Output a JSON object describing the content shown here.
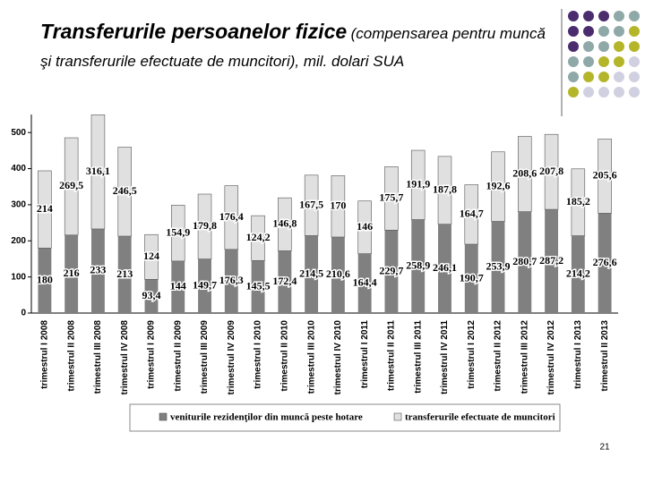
{
  "chart_data": {
    "type": "stacked_bar",
    "title": "Transferurile persoanelor fizice",
    "subtitle": "(compensarea pentru muncă şi transferurile efectuate de muncitori), mil. dolari SUA",
    "categories": [
      "trimestrul I 2008",
      "trimestrul II 2008",
      "trimestrul III 2008",
      "trimestrul IV 2008",
      "trimestrul I 2009",
      "trimestrul II 2009",
      "trimestrul III 2009",
      "trimestrul IV 2009",
      "trimestrul I 2010",
      "trimestrul II 2010",
      "trimestrul III 2010",
      "trimestrul IV 2010",
      "trimestrul I 2011",
      "trimestrul II 2011",
      "trimestrul III 2011",
      "trimestrul IV 2011",
      "trimestrul I 2012",
      "trimestrul II 2012",
      "trimestrul III 2012",
      "trimestrul IV 2012",
      "trimestrul I 2013",
      "trimestrul II 2013"
    ],
    "series": [
      {
        "name": "veniturile rezidenţilor din muncă peste hotare",
        "color": "#808080",
        "values": [
          180,
          216,
          233,
          213,
          93.4,
          144,
          149.7,
          176.3,
          145.5,
          172.4,
          214.5,
          210.6,
          164.4,
          229.7,
          258.9,
          246.1,
          190.7,
          253.9,
          280.7,
          287.2,
          214.2,
          276.6
        ],
        "value_labels": [
          "180",
          "216",
          "233",
          "213",
          "93,4",
          "144",
          "149,7",
          "176,3",
          "145,5",
          "172,4",
          "214,5",
          "210,6",
          "164,4",
          "229,7",
          "258,9",
          "246,1",
          "190,7",
          "253,9",
          "280,7",
          "287,2",
          "214,2",
          "276,6"
        ]
      },
      {
        "name": "transferurile efectuate de muncitori",
        "color": "#e0e0e0",
        "values": [
          214,
          269.5,
          316.1,
          246.5,
          124,
          154.9,
          179.8,
          176.4,
          124.2,
          146.8,
          167.5,
          170,
          146,
          175.7,
          191.9,
          187.8,
          164.7,
          192.6,
          208.6,
          207.8,
          185.2,
          205.6
        ],
        "value_labels": [
          "214",
          "269,5",
          "316,1",
          "246,5",
          "124",
          "154,9",
          "179,8",
          "176,4",
          "124,2",
          "146,8",
          "167,5",
          "170",
          "146",
          "175,7",
          "191,9",
          "187,8",
          "164,7",
          "192,6",
          "208,6",
          "207,8",
          "185,2",
          "205,6"
        ]
      }
    ],
    "ylim": [
      0,
      550
    ],
    "yticks": [
      0,
      100,
      200,
      300,
      400,
      500
    ]
  },
  "page_number": "21"
}
